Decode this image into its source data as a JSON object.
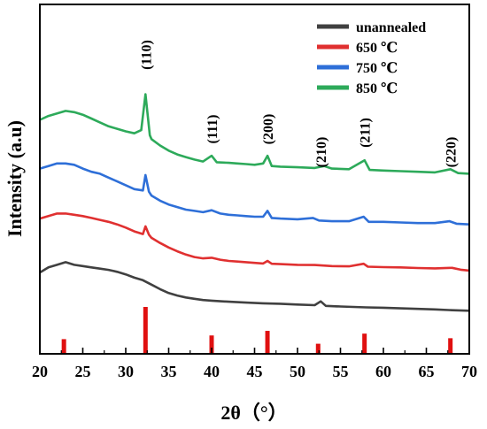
{
  "chart_data": {
    "type": "line",
    "xlabel": "2θ（°）",
    "ylabel": "Intensity (a.u)",
    "xlim": [
      20,
      70
    ],
    "x_ticks": [
      20,
      25,
      30,
      35,
      40,
      45,
      50,
      55,
      60,
      65,
      70
    ],
    "y_ticks_shown": false,
    "grid": false,
    "legend_position": "top-right",
    "series": [
      {
        "name": "unannealed",
        "color": "#404040",
        "points": [
          [
            20,
            5.1
          ],
          [
            21,
            5.5
          ],
          [
            22,
            5.7
          ],
          [
            23,
            5.9
          ],
          [
            24,
            5.7
          ],
          [
            25,
            5.6
          ],
          [
            26,
            5.5
          ],
          [
            27,
            5.4
          ],
          [
            28,
            5.3
          ],
          [
            29,
            5.15
          ],
          [
            30,
            4.95
          ],
          [
            31,
            4.7
          ],
          [
            32,
            4.5
          ],
          [
            33,
            4.15
          ],
          [
            34,
            3.8
          ],
          [
            35,
            3.5
          ],
          [
            36,
            3.3
          ],
          [
            37,
            3.15
          ],
          [
            38,
            3.05
          ],
          [
            39,
            2.95
          ],
          [
            40,
            2.9
          ],
          [
            42,
            2.82
          ],
          [
            44,
            2.75
          ],
          [
            46,
            2.7
          ],
          [
            48,
            2.66
          ],
          [
            50,
            2.6
          ],
          [
            52,
            2.55
          ],
          [
            52.7,
            2.85
          ],
          [
            53.3,
            2.5
          ],
          [
            55,
            2.45
          ],
          [
            58,
            2.38
          ],
          [
            60,
            2.35
          ],
          [
            62,
            2.3
          ],
          [
            64,
            2.26
          ],
          [
            66,
            2.22
          ],
          [
            68,
            2.16
          ],
          [
            70,
            2.12
          ]
        ]
      },
      {
        "name": "650 ℃",
        "color": "#E03030",
        "points": [
          [
            20,
            9.3
          ],
          [
            21,
            9.5
          ],
          [
            22,
            9.7
          ],
          [
            23,
            9.7
          ],
          [
            24,
            9.6
          ],
          [
            25,
            9.5
          ],
          [
            26,
            9.35
          ],
          [
            27,
            9.2
          ],
          [
            28,
            9.05
          ],
          [
            29,
            8.85
          ],
          [
            30,
            8.6
          ],
          [
            31,
            8.3
          ],
          [
            32,
            8.1
          ],
          [
            32.3,
            8.7
          ],
          [
            32.7,
            8.05
          ],
          [
            33,
            7.8
          ],
          [
            34,
            7.4
          ],
          [
            35,
            7.05
          ],
          [
            36,
            6.75
          ],
          [
            37,
            6.5
          ],
          [
            38,
            6.3
          ],
          [
            39,
            6.2
          ],
          [
            40,
            6.25
          ],
          [
            41,
            6.1
          ],
          [
            42,
            6.0
          ],
          [
            43,
            5.95
          ],
          [
            44,
            5.9
          ],
          [
            45,
            5.85
          ],
          [
            46,
            5.8
          ],
          [
            46.5,
            6.0
          ],
          [
            47,
            5.78
          ],
          [
            48,
            5.75
          ],
          [
            50,
            5.7
          ],
          [
            52,
            5.68
          ],
          [
            54,
            5.6
          ],
          [
            56,
            5.58
          ],
          [
            57.7,
            5.78
          ],
          [
            58.2,
            5.55
          ],
          [
            60,
            5.52
          ],
          [
            62,
            5.5
          ],
          [
            64,
            5.45
          ],
          [
            66,
            5.42
          ],
          [
            68,
            5.46
          ],
          [
            69,
            5.32
          ],
          [
            70,
            5.25
          ]
        ]
      },
      {
        "name": "750 ℃",
        "color": "#2E6FD8",
        "points": [
          [
            20,
            13.2
          ],
          [
            21,
            13.4
          ],
          [
            22,
            13.6
          ],
          [
            23,
            13.6
          ],
          [
            24,
            13.5
          ],
          [
            25,
            13.2
          ],
          [
            26,
            12.95
          ],
          [
            27,
            12.8
          ],
          [
            28,
            12.5
          ],
          [
            29,
            12.2
          ],
          [
            30,
            11.9
          ],
          [
            31,
            11.6
          ],
          [
            32,
            11.5
          ],
          [
            32.3,
            12.7
          ],
          [
            32.7,
            11.4
          ],
          [
            33,
            11.1
          ],
          [
            34,
            10.7
          ],
          [
            35,
            10.4
          ],
          [
            36,
            10.2
          ],
          [
            37,
            10.0
          ],
          [
            38,
            9.9
          ],
          [
            39,
            9.8
          ],
          [
            40,
            9.95
          ],
          [
            41,
            9.7
          ],
          [
            42,
            9.6
          ],
          [
            43,
            9.55
          ],
          [
            44,
            9.5
          ],
          [
            45,
            9.45
          ],
          [
            46,
            9.45
          ],
          [
            46.5,
            9.9
          ],
          [
            47,
            9.35
          ],
          [
            48,
            9.3
          ],
          [
            50,
            9.25
          ],
          [
            51.8,
            9.35
          ],
          [
            52.5,
            9.15
          ],
          [
            54,
            9.1
          ],
          [
            56,
            9.1
          ],
          [
            57.7,
            9.45
          ],
          [
            58.3,
            9.05
          ],
          [
            60,
            9.05
          ],
          [
            62,
            9.0
          ],
          [
            64,
            8.95
          ],
          [
            66,
            8.95
          ],
          [
            67.7,
            9.1
          ],
          [
            68.5,
            8.9
          ],
          [
            70,
            8.85
          ]
        ]
      },
      {
        "name": "850 ℃",
        "color": "#2DAA5A",
        "points": [
          [
            20,
            17.0
          ],
          [
            21,
            17.3
          ],
          [
            22,
            17.5
          ],
          [
            23,
            17.7
          ],
          [
            24,
            17.6
          ],
          [
            25,
            17.4
          ],
          [
            26,
            17.1
          ],
          [
            27,
            16.8
          ],
          [
            28,
            16.5
          ],
          [
            29,
            16.3
          ],
          [
            30,
            16.1
          ],
          [
            31,
            15.95
          ],
          [
            31.8,
            16.2
          ],
          [
            32.3,
            19.0
          ],
          [
            32.8,
            15.8
          ],
          [
            33,
            15.5
          ],
          [
            34,
            15.0
          ],
          [
            35,
            14.6
          ],
          [
            36,
            14.3
          ],
          [
            37,
            14.1
          ],
          [
            38,
            13.9
          ],
          [
            39,
            13.75
          ],
          [
            40,
            14.2
          ],
          [
            40.6,
            13.7
          ],
          [
            42,
            13.65
          ],
          [
            43,
            13.6
          ],
          [
            44,
            13.55
          ],
          [
            45,
            13.5
          ],
          [
            46,
            13.6
          ],
          [
            46.5,
            14.2
          ],
          [
            47,
            13.4
          ],
          [
            48,
            13.35
          ],
          [
            50,
            13.3
          ],
          [
            52,
            13.25
          ],
          [
            53.1,
            13.4
          ],
          [
            54,
            13.2
          ],
          [
            56,
            13.15
          ],
          [
            57.8,
            13.85
          ],
          [
            58.4,
            13.1
          ],
          [
            60,
            13.05
          ],
          [
            62,
            13.0
          ],
          [
            64,
            12.95
          ],
          [
            66,
            12.9
          ],
          [
            67.8,
            13.15
          ],
          [
            68.7,
            12.85
          ],
          [
            70,
            12.8
          ]
        ]
      }
    ],
    "peak_labels": [
      {
        "label": "(110)",
        "x": 32.3
      },
      {
        "label": "(111)",
        "x": 40.0
      },
      {
        "label": "(200)",
        "x": 46.5
      },
      {
        "label": "(210)",
        "x": 52.7
      },
      {
        "label": "(211)",
        "x": 57.8
      },
      {
        "label": "(220)",
        "x": 67.8
      }
    ],
    "reference_bars": {
      "color": "#E01010",
      "bars": [
        {
          "x": 22.8,
          "height": 0.3
        },
        {
          "x": 32.3,
          "height": 1.0
        },
        {
          "x": 40.0,
          "height": 0.38
        },
        {
          "x": 46.5,
          "height": 0.48
        },
        {
          "x": 52.4,
          "height": 0.2
        },
        {
          "x": 57.8,
          "height": 0.42
        },
        {
          "x": 67.8,
          "height": 0.32
        }
      ]
    }
  }
}
